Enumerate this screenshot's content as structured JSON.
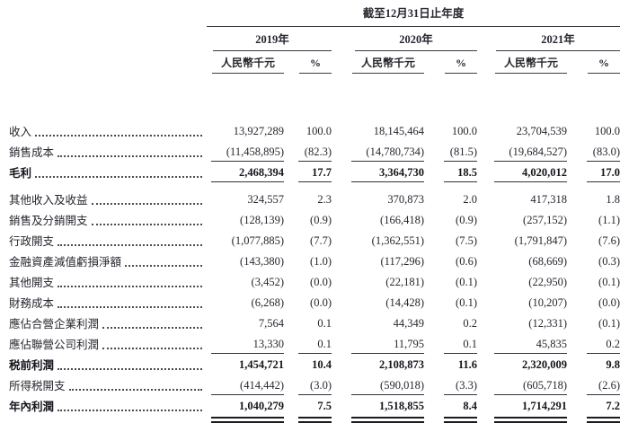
{
  "table": {
    "title": "截至12月31日止年度",
    "unit_label": "人民幣千元",
    "pct_label": "%",
    "year_groups": [
      {
        "year": "2019年"
      },
      {
        "year": "2020年"
      },
      {
        "year": "2021年"
      }
    ],
    "rows": [
      {
        "label": "收入",
        "v": [
          "13,927,289",
          "100.0",
          "18,145,464",
          "100.0",
          "23,704,539",
          "100.0"
        ],
        "bold": false,
        "rule": "none",
        "gap_before": false
      },
      {
        "label": "銷售成本",
        "v": [
          "(11,458,895)",
          "(82.3)",
          "(14,780,734)",
          "(81.5)",
          "(19,684,527)",
          "(83.0)"
        ],
        "bold": false,
        "rule": "single",
        "gap_before": false
      },
      {
        "label": "毛利",
        "v": [
          "2,468,394",
          "17.7",
          "3,364,730",
          "18.5",
          "4,020,012",
          "17.0"
        ],
        "bold": true,
        "rule": "single",
        "gap_before": false
      },
      {
        "label": "其他收入及收益",
        "v": [
          "324,557",
          "2.3",
          "370,873",
          "2.0",
          "417,318",
          "1.8"
        ],
        "bold": false,
        "rule": "none",
        "gap_before": true
      },
      {
        "label": "銷售及分銷開支",
        "v": [
          "(128,139)",
          "(0.9)",
          "(166,418)",
          "(0.9)",
          "(257,152)",
          "(1.1)"
        ],
        "bold": false,
        "rule": "none",
        "gap_before": false
      },
      {
        "label": "行政開支",
        "v": [
          "(1,077,885)",
          "(7.7)",
          "(1,362,551)",
          "(7.5)",
          "(1,791,847)",
          "(7.6)"
        ],
        "bold": false,
        "rule": "none",
        "gap_before": false
      },
      {
        "label": "金融資產減值虧損淨額",
        "v": [
          "(143,380)",
          "(1.0)",
          "(117,296)",
          "(0.6)",
          "(68,669)",
          "(0.3)"
        ],
        "bold": false,
        "rule": "none",
        "gap_before": false
      },
      {
        "label": "其他開支",
        "v": [
          "(3,452)",
          "(0.0)",
          "(22,181)",
          "(0.1)",
          "(22,950)",
          "(0.1)"
        ],
        "bold": false,
        "rule": "none",
        "gap_before": false
      },
      {
        "label": "財務成本",
        "v": [
          "(6,268)",
          "(0.0)",
          "(14,428)",
          "(0.1)",
          "(10,207)",
          "(0.0)"
        ],
        "bold": false,
        "rule": "none",
        "gap_before": false
      },
      {
        "label": "應佔合營企業利潤",
        "v": [
          "7,564",
          "0.1",
          "44,349",
          "0.2",
          "(12,331)",
          "(0.1)"
        ],
        "bold": false,
        "rule": "none",
        "gap_before": false
      },
      {
        "label": "應佔聯營公司利潤",
        "v": [
          "13,330",
          "0.1",
          "11,795",
          "0.1",
          "45,835",
          "0.2"
        ],
        "bold": false,
        "rule": "single",
        "gap_before": false
      },
      {
        "label": "税前利潤",
        "v": [
          "1,454,721",
          "10.4",
          "2,108,873",
          "11.6",
          "2,320,009",
          "9.8"
        ],
        "bold": true,
        "rule": "none",
        "gap_before": false
      },
      {
        "label": "所得税開支",
        "v": [
          "(414,442)",
          "(3.0)",
          "(590,018)",
          "(3.3)",
          "(605,718)",
          "(2.6)"
        ],
        "bold": false,
        "rule": "single",
        "gap_before": false
      },
      {
        "label": "年內利潤",
        "v": [
          "1,040,279",
          "7.5",
          "1,518,855",
          "8.4",
          "1,714,291",
          "7.2"
        ],
        "bold": true,
        "rule": "double",
        "gap_before": false
      }
    ]
  }
}
